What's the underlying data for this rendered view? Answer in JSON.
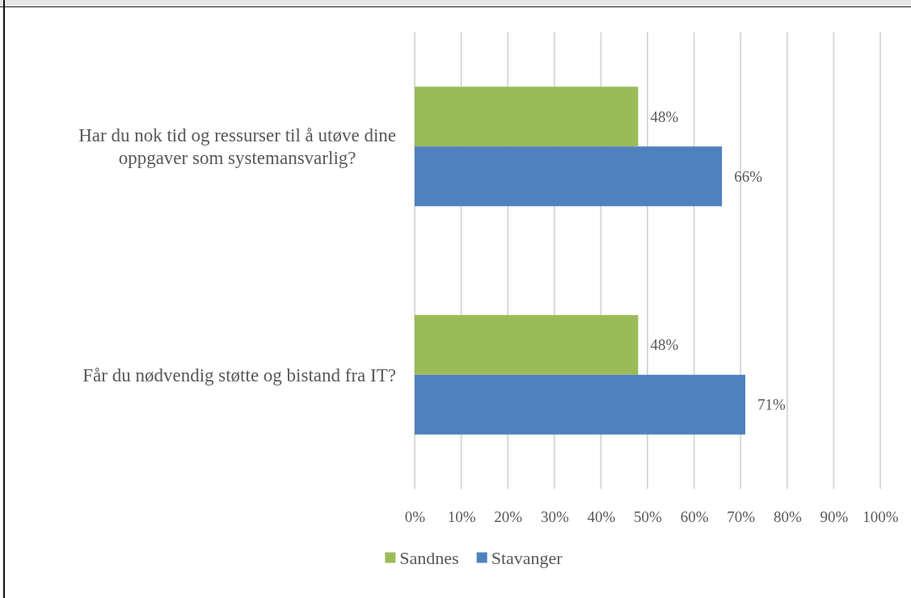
{
  "chart_data": {
    "type": "bar",
    "orientation": "horizontal",
    "categories": [
      "Har du nok tid og ressurser til å utøve dine oppgaver som systemansvarlig?",
      "Får du nødvendig støtte og bistand fra IT?"
    ],
    "series": [
      {
        "name": "Sandnes",
        "color": "#9bbb59",
        "values": [
          48,
          48
        ],
        "value_labels": [
          "48%",
          "48%"
        ]
      },
      {
        "name": "Stavanger",
        "color": "#4f81bd",
        "values": [
          66,
          71
        ],
        "value_labels": [
          "66%",
          "71%"
        ]
      }
    ],
    "xlim": [
      0,
      100
    ],
    "xticks": [
      {
        "value": 0,
        "label": "0%"
      },
      {
        "value": 10,
        "label": "10%"
      },
      {
        "value": 20,
        "label": "20%"
      },
      {
        "value": 30,
        "label": "30%"
      },
      {
        "value": 40,
        "label": "40%"
      },
      {
        "value": 50,
        "label": "50%"
      },
      {
        "value": 60,
        "label": "60%"
      },
      {
        "value": 70,
        "label": "70%"
      },
      {
        "value": 80,
        "label": "80%"
      },
      {
        "value": 90,
        "label": "90%"
      },
      {
        "value": 100,
        "label": "100%"
      }
    ],
    "grid": "x",
    "legend": "bottom"
  }
}
